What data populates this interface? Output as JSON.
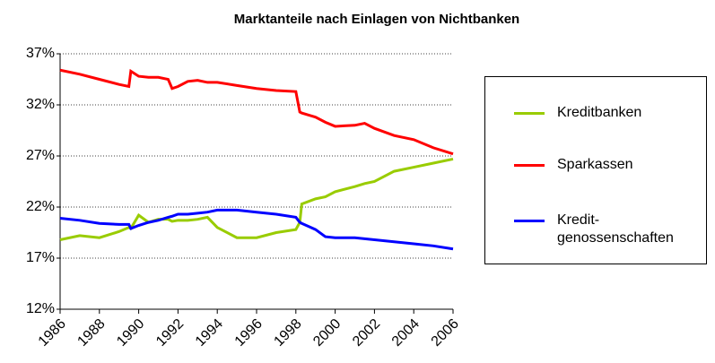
{
  "chart_data": {
    "type": "line",
    "title": "Marktanteile nach Einlagen von Nichtbanken",
    "x": [
      1986,
      1987,
      1988,
      1989,
      1989.5,
      1989.6,
      1990,
      1990.5,
      1991,
      1991.5,
      1991.7,
      1992,
      1992.5,
      1993,
      1993.5,
      1994,
      1995,
      1996,
      1997,
      1998,
      1998.2,
      1998.3,
      1999,
      1999.5,
      2000,
      2001,
      2001.5,
      2002,
      2003,
      2004,
      2005,
      2006
    ],
    "series": [
      {
        "name": "Kreditbanken",
        "color": "#99cc00",
        "values": [
          18.8,
          19.2,
          19.0,
          19.6,
          20.0,
          19.9,
          21.2,
          20.5,
          20.8,
          20.8,
          20.6,
          20.7,
          20.7,
          20.8,
          21.0,
          20.0,
          19.0,
          19.0,
          19.5,
          19.8,
          20.5,
          22.3,
          22.8,
          23.0,
          23.5,
          24.0,
          24.3,
          24.5,
          25.5,
          25.9,
          26.3,
          26.7
        ]
      },
      {
        "name": "Sparkassen",
        "color": "#ff0000",
        "values": [
          35.4,
          35.0,
          34.5,
          34.0,
          33.8,
          35.3,
          34.8,
          34.7,
          34.7,
          34.5,
          33.6,
          33.8,
          34.3,
          34.4,
          34.2,
          34.2,
          33.9,
          33.6,
          33.4,
          33.3,
          31.3,
          31.2,
          30.8,
          30.3,
          29.9,
          30.0,
          30.2,
          29.7,
          29.0,
          28.6,
          27.8,
          27.2
        ]
      },
      {
        "name": "Kredit-\ngenossenschaften",
        "color": "#0000ff",
        "values": [
          20.9,
          20.7,
          20.4,
          20.3,
          20.3,
          19.9,
          20.2,
          20.5,
          20.7,
          21.0,
          21.1,
          21.3,
          21.3,
          21.4,
          21.5,
          21.7,
          21.7,
          21.5,
          21.3,
          21.0,
          20.5,
          20.4,
          19.8,
          19.1,
          19.0,
          19.0,
          18.9,
          18.8,
          18.6,
          18.4,
          18.2,
          17.9
        ]
      }
    ],
    "xlim": [
      1986,
      2006
    ],
    "xticks": [
      1986,
      1988,
      1990,
      1992,
      1994,
      1996,
      1998,
      2000,
      2002,
      2004,
      2006
    ],
    "ylim": [
      12,
      37
    ],
    "yticks": [
      {
        "value": 12,
        "label": "12%"
      },
      {
        "value": 17,
        "label": "17%"
      },
      {
        "value": 22,
        "label": "22%"
      },
      {
        "value": 27,
        "label": "27%"
      },
      {
        "value": 32,
        "label": "32%"
      },
      {
        "value": 37,
        "label": "37%"
      }
    ],
    "grid": true,
    "legend": "right"
  }
}
